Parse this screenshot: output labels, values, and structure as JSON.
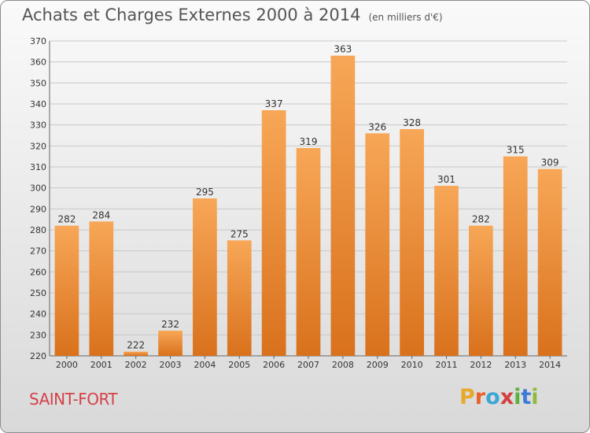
{
  "header": {
    "title": "Achats et Charges Externes 2000 à 2014",
    "unit": "(en milliers d'€)"
  },
  "footer": {
    "commune": "SAINT-FORT",
    "brand_letters": [
      "P",
      "r",
      "o",
      "x",
      "i",
      "t",
      "i"
    ],
    "brand_colors": [
      "#e8a92b",
      "#e8622b",
      "#3ba7d6",
      "#d43f3f",
      "#57b33c",
      "#3b7bd6",
      "#8fbc3c"
    ]
  },
  "colors": {
    "bar_light": "#f7a757",
    "bar_dark": "#d9711c",
    "grid": "#c8c8c8",
    "commune": "#d4424a"
  },
  "chart_data": {
    "type": "bar",
    "title": "Achats et Charges Externes 2000 à 2014",
    "subtitle": "(en milliers d'€)",
    "categories": [
      "2000",
      "2001",
      "2002",
      "2003",
      "2004",
      "2005",
      "2006",
      "2007",
      "2008",
      "2009",
      "2010",
      "2011",
      "2012",
      "2013",
      "2014"
    ],
    "values": [
      282,
      284,
      222,
      232,
      295,
      275,
      337,
      319,
      363,
      326,
      328,
      301,
      282,
      315,
      309
    ],
    "ylim": [
      220,
      370
    ],
    "yticks": [
      220,
      230,
      240,
      250,
      260,
      270,
      280,
      290,
      300,
      310,
      320,
      330,
      340,
      350,
      360,
      370
    ],
    "grid": true,
    "data_labels": true
  }
}
